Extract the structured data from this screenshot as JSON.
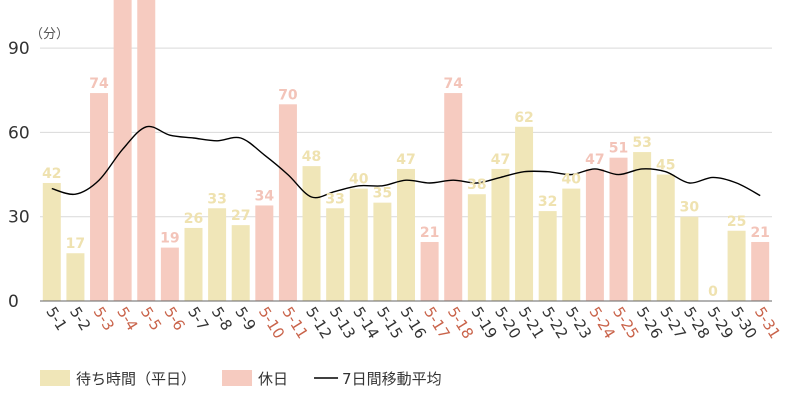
{
  "chart_data": {
    "type": "bar",
    "unit_label": "（分）",
    "categories": [
      "5-1",
      "5-2",
      "5-3",
      "5-4",
      "5-5",
      "5-6",
      "5-7",
      "5-8",
      "5-9",
      "5-10",
      "5-11",
      "5-12",
      "5-13",
      "5-14",
      "5-15",
      "5-16",
      "5-17",
      "5-18",
      "5-19",
      "5-20",
      "5-21",
      "5-22",
      "5-23",
      "5-24",
      "5-25",
      "5-26",
      "5-27",
      "5-28",
      "5-29",
      "5-30",
      "5-31"
    ],
    "day_type": [
      "weekday",
      "weekday",
      "holiday",
      "holiday",
      "holiday",
      "holiday",
      "weekday",
      "weekday",
      "weekday",
      "holiday",
      "holiday",
      "weekday",
      "weekday",
      "weekday",
      "weekday",
      "weekday",
      "holiday",
      "holiday",
      "weekday",
      "weekday",
      "weekday",
      "weekday",
      "weekday",
      "holiday",
      "holiday",
      "weekday",
      "weekday",
      "weekday",
      "weekday",
      "weekday",
      "holiday"
    ],
    "series": [
      {
        "name": "待ち時間（平日）",
        "kind": "bar",
        "color": "#f0e6b8",
        "label_color": "#efe2b0",
        "values": [
          42,
          17,
          null,
          null,
          null,
          null,
          26,
          33,
          27,
          null,
          null,
          48,
          33,
          40,
          35,
          47,
          null,
          null,
          38,
          47,
          62,
          32,
          40,
          null,
          null,
          53,
          45,
          30,
          0,
          25,
          null
        ]
      },
      {
        "name": "休日",
        "kind": "bar",
        "color": "#f6cbc0",
        "label_color": "#f3c4b9",
        "values": [
          null,
          null,
          74,
          115,
          110,
          19,
          null,
          null,
          null,
          34,
          70,
          null,
          null,
          null,
          null,
          null,
          21,
          74,
          null,
          null,
          null,
          null,
          null,
          47,
          51,
          null,
          null,
          null,
          null,
          null,
          21
        ]
      },
      {
        "name": "7日間移動平均",
        "kind": "line",
        "color": "#000000",
        "values": [
          40,
          38,
          43,
          54,
          62,
          59,
          58,
          57,
          58,
          52,
          45,
          37,
          39,
          41,
          41,
          43,
          42,
          43,
          42,
          44,
          46,
          46,
          45,
          47,
          45,
          47,
          46,
          42,
          44,
          42,
          37.5
        ]
      }
    ],
    "hidden_value_labels": [
      3,
      4
    ],
    "ylim": [
      0,
      100
    ],
    "yticks": [
      0,
      30,
      60,
      90
    ],
    "grid": true,
    "legend_position": "bottom-left",
    "colors": {
      "weekday_bar": "#f0e6b8",
      "holiday_bar": "#f6cbc0",
      "weekday_tick": "#333333",
      "holiday_tick": "#c9634a",
      "grid": "#d9d9d9",
      "axis": "#666666"
    }
  },
  "legend": {
    "items": [
      {
        "label": "待ち時間（平日）",
        "swatch": "box",
        "color": "#f0e6b8"
      },
      {
        "label": "休日",
        "swatch": "box",
        "color": "#f6cbc0"
      },
      {
        "label": "7日間移動平均",
        "swatch": "line",
        "color": "#000000"
      }
    ]
  }
}
